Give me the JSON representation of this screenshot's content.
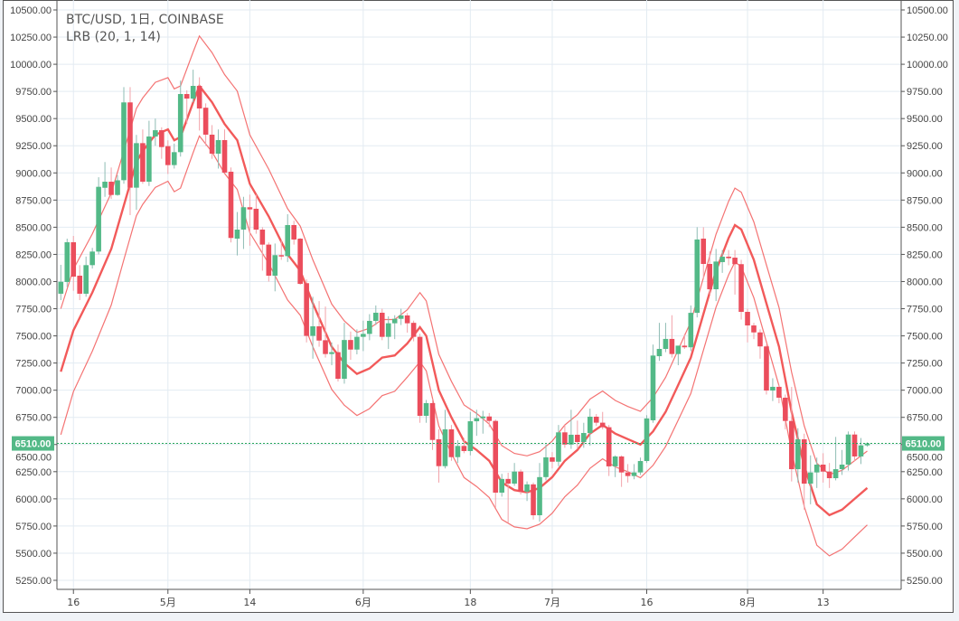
{
  "header": {
    "title": "BTC/USD, 1日, COINBASE",
    "indicator": "LRB (20, 1, 14)"
  },
  "colors": {
    "up": "#53b987",
    "down": "#eb4d5c",
    "up_wick": "#8fbcb4",
    "down_wick": "#f2a3aa",
    "band": "#f25a5a",
    "grid": "#e3ebf2",
    "price_line": "#26a65b"
  },
  "chart_data": {
    "type": "candlestick",
    "title": "BTC/USD, 1日, COINBASE",
    "ylim": [
      5250,
      10500
    ],
    "yticks": [
      5250,
      5500,
      5750,
      6000,
      6250,
      6500,
      6750,
      7000,
      7250,
      7500,
      7750,
      8000,
      8250,
      8500,
      8750,
      9000,
      9250,
      9500,
      9750,
      10000,
      10250,
      10500
    ],
    "xticks": [
      {
        "i": 2,
        "label": "16"
      },
      {
        "i": 17,
        "label": "5月"
      },
      {
        "i": 30,
        "label": "14"
      },
      {
        "i": 48,
        "label": "6月"
      },
      {
        "i": 65,
        "label": "18"
      },
      {
        "i": 78,
        "label": "7月"
      },
      {
        "i": 93,
        "label": "16"
      },
      {
        "i": 109,
        "label": "8月"
      },
      {
        "i": 121,
        "label": "13"
      }
    ],
    "last_price": 6510,
    "last_price_label": "6510.00",
    "ohlc": [
      [
        7888,
        8154,
        7829,
        7998
      ],
      [
        7996,
        8395,
        7950,
        8362
      ],
      [
        8362,
        8420,
        7915,
        8045
      ],
      [
        8054,
        8151,
        7829,
        7888
      ],
      [
        7888,
        8230,
        7860,
        8151
      ],
      [
        8151,
        8310,
        8120,
        8276
      ],
      [
        8276,
        8960,
        8250,
        8872
      ],
      [
        8863,
        9100,
        8780,
        8919
      ],
      [
        8919,
        9050,
        8760,
        8797
      ],
      [
        8797,
        8980,
        8790,
        8932
      ],
      [
        8933,
        9790,
        8900,
        9649
      ],
      [
        9649,
        9790,
        8611,
        8864
      ],
      [
        8864,
        9350,
        8660,
        9274
      ],
      [
        9274,
        9400,
        8900,
        8919
      ],
      [
        8919,
        9480,
        8880,
        9335
      ],
      [
        9335,
        9500,
        9250,
        9393
      ],
      [
        9393,
        9420,
        9130,
        9238
      ],
      [
        9246,
        9300,
        8990,
        9072
      ],
      [
        9072,
        9270,
        9040,
        9191
      ],
      [
        9191,
        9850,
        9150,
        9726
      ],
      [
        9726,
        9760,
        9450,
        9684
      ],
      [
        9684,
        9950,
        9650,
        9801
      ],
      [
        9801,
        9880,
        9390,
        9593
      ],
      [
        9600,
        9640,
        9250,
        9352
      ],
      [
        9352,
        9440,
        9130,
        9177
      ],
      [
        9177,
        9400,
        9040,
        9302
      ],
      [
        9302,
        9400,
        9000,
        9003
      ],
      [
        9011,
        9050,
        8360,
        8401
      ],
      [
        8395,
        8640,
        8240,
        8478
      ],
      [
        8478,
        8780,
        8300,
        8684
      ],
      [
        8684,
        8800,
        8330,
        8664
      ],
      [
        8670,
        8800,
        8440,
        8478
      ],
      [
        8478,
        8500,
        8100,
        8340
      ],
      [
        8340,
        8360,
        8000,
        8054
      ],
      [
        8054,
        8350,
        7910,
        8243
      ],
      [
        8243,
        8380,
        8200,
        8234
      ],
      [
        8234,
        8620,
        8180,
        8520
      ],
      [
        8520,
        8560,
        8340,
        8387
      ],
      [
        8395,
        8400,
        7970,
        7979
      ],
      [
        7985,
        8020,
        7440,
        7500
      ],
      [
        7500,
        7860,
        7290,
        7588
      ],
      [
        7588,
        7820,
        7400,
        7457
      ],
      [
        7460,
        7770,
        7300,
        7333
      ],
      [
        7333,
        7440,
        7230,
        7350
      ],
      [
        7350,
        7420,
        7080,
        7105
      ],
      [
        7105,
        7620,
        7060,
        7462
      ],
      [
        7462,
        7540,
        7280,
        7374
      ],
      [
        7374,
        7560,
        7330,
        7491
      ],
      [
        7491,
        7640,
        7360,
        7518
      ],
      [
        7518,
        7700,
        7460,
        7638
      ],
      [
        7638,
        7780,
        7600,
        7713
      ],
      [
        7713,
        7750,
        7460,
        7491
      ],
      [
        7491,
        7680,
        7380,
        7616
      ],
      [
        7616,
        7690,
        7470,
        7657
      ],
      [
        7657,
        7750,
        7600,
        7688
      ],
      [
        7688,
        7710,
        7530,
        7616
      ],
      [
        7620,
        7640,
        7450,
        7491
      ],
      [
        7491,
        7520,
        6700,
        6764
      ],
      [
        6764,
        6910,
        6700,
        6881
      ],
      [
        6881,
        6920,
        6450,
        6542
      ],
      [
        6548,
        6640,
        6150,
        6301
      ],
      [
        6301,
        6820,
        6280,
        6640
      ],
      [
        6640,
        6680,
        6350,
        6384
      ],
      [
        6384,
        6540,
        6330,
        6487
      ],
      [
        6487,
        6560,
        6420,
        6440
      ],
      [
        6440,
        6800,
        6400,
        6714
      ],
      [
        6714,
        6820,
        6580,
        6742
      ],
      [
        6742,
        6810,
        6600,
        6758
      ],
      [
        6758,
        6790,
        6660,
        6717
      ],
      [
        6717,
        6730,
        5920,
        6057
      ],
      [
        6057,
        6230,
        6020,
        6183
      ],
      [
        6183,
        6240,
        5780,
        6140
      ],
      [
        6140,
        6330,
        6120,
        6251
      ],
      [
        6251,
        6270,
        6040,
        6066
      ],
      [
        6066,
        6160,
        5980,
        6133
      ],
      [
        6133,
        6150,
        5810,
        5849
      ],
      [
        5849,
        6330,
        5790,
        6200
      ],
      [
        6200,
        6500,
        6170,
        6382
      ],
      [
        6382,
        6430,
        6280,
        6342
      ],
      [
        6342,
        6680,
        6300,
        6612
      ],
      [
        6612,
        6680,
        6470,
        6500
      ],
      [
        6500,
        6820,
        6460,
        6590
      ],
      [
        6590,
        6720,
        6460,
        6523
      ],
      [
        6523,
        6700,
        6470,
        6606
      ],
      [
        6606,
        6830,
        6490,
        6756
      ],
      [
        6756,
        6780,
        6670,
        6701
      ],
      [
        6701,
        6800,
        6640,
        6659
      ],
      [
        6659,
        6680,
        6210,
        6299
      ],
      [
        6299,
        6400,
        6200,
        6390
      ],
      [
        6390,
        6400,
        6110,
        6243
      ],
      [
        6243,
        6320,
        6150,
        6210
      ],
      [
        6210,
        6320,
        6180,
        6243
      ],
      [
        6243,
        6380,
        6220,
        6348
      ],
      [
        6348,
        6770,
        6330,
        6740
      ],
      [
        6723,
        7420,
        6700,
        7319
      ],
      [
        7313,
        7620,
        7270,
        7380
      ],
      [
        7380,
        7620,
        7350,
        7472
      ],
      [
        7472,
        7690,
        7300,
        7333
      ],
      [
        7333,
        7410,
        7230,
        7410
      ],
      [
        7410,
        7520,
        7380,
        7395
      ],
      [
        7395,
        7780,
        7360,
        7712
      ],
      [
        7712,
        8500,
        7670,
        8387
      ],
      [
        8395,
        8500,
        8030,
        8162
      ],
      [
        8162,
        8280,
        7880,
        7929
      ],
      [
        7929,
        8300,
        7820,
        8184
      ],
      [
        8179,
        8290,
        8080,
        8229
      ],
      [
        8229,
        8290,
        8150,
        8215
      ],
      [
        8220,
        8290,
        7880,
        8160
      ],
      [
        8160,
        8200,
        7650,
        7721
      ],
      [
        7721,
        7750,
        7440,
        7596
      ],
      [
        7596,
        7620,
        7470,
        7532
      ],
      [
        7532,
        7560,
        7290,
        7403
      ],
      [
        7403,
        7420,
        6960,
        6997
      ],
      [
        6997,
        7110,
        6900,
        7031
      ],
      [
        7031,
        7050,
        6880,
        6931
      ],
      [
        6931,
        6960,
        6640,
        6717
      ],
      [
        6717,
        7030,
        6160,
        6273
      ],
      [
        6273,
        6650,
        6150,
        6548
      ],
      [
        6548,
        6600,
        5900,
        6140
      ],
      [
        6140,
        6400,
        5950,
        6243
      ],
      [
        6243,
        6380,
        6100,
        6315
      ],
      [
        6315,
        6420,
        6150,
        6251
      ],
      [
        6251,
        6330,
        6100,
        6190
      ],
      [
        6190,
        6570,
        6170,
        6273
      ],
      [
        6273,
        6450,
        6220,
        6315
      ],
      [
        6315,
        6620,
        6260,
        6592
      ],
      [
        6592,
        6620,
        6350,
        6390
      ],
      [
        6390,
        6560,
        6320,
        6492
      ],
      [
        6492,
        6520,
        6480,
        6510
      ]
    ],
    "lrb": {
      "name": "LRB (20, 1, 14)",
      "idx": [
        0,
        2,
        5,
        8,
        10,
        12,
        13,
        15,
        17,
        18,
        19,
        21,
        22,
        24,
        26,
        28,
        30,
        33,
        36,
        38,
        40,
        43,
        45,
        47,
        49,
        51,
        53,
        55,
        57,
        58,
        60,
        62,
        64,
        66,
        68,
        70,
        72,
        74,
        76,
        78,
        80,
        82,
        84,
        86,
        88,
        90,
        92,
        94,
        96,
        98,
        100,
        102,
        104,
        106,
        107,
        108,
        110,
        112,
        114,
        116,
        118,
        120,
        122,
        124,
        126,
        128
      ],
      "middle": [
        7170,
        7550,
        7900,
        8300,
        8700,
        9100,
        9200,
        9350,
        9400,
        9300,
        9330,
        9650,
        9800,
        9650,
        9450,
        9300,
        8900,
        8600,
        8250,
        8100,
        7800,
        7400,
        7250,
        7150,
        7200,
        7300,
        7320,
        7430,
        7580,
        7500,
        7000,
        6750,
        6530,
        6450,
        6350,
        6150,
        6080,
        6060,
        6100,
        6200,
        6350,
        6450,
        6600,
        6680,
        6600,
        6550,
        6500,
        6620,
        6800,
        7050,
        7300,
        7700,
        8100,
        8400,
        8520,
        8480,
        8200,
        7800,
        7400,
        6800,
        6300,
        5950,
        5850,
        5900,
        6000,
        6100
      ],
      "dev_idx": [
        0,
        10,
        22,
        30,
        40,
        48,
        55,
        60,
        70,
        80,
        90,
        100,
        107,
        114,
        121,
        128
      ],
      "dev": [
        580,
        500,
        460,
        450,
        400,
        380,
        310,
        330,
        340,
        330,
        300,
        330,
        340,
        360,
        380,
        340
      ]
    }
  }
}
